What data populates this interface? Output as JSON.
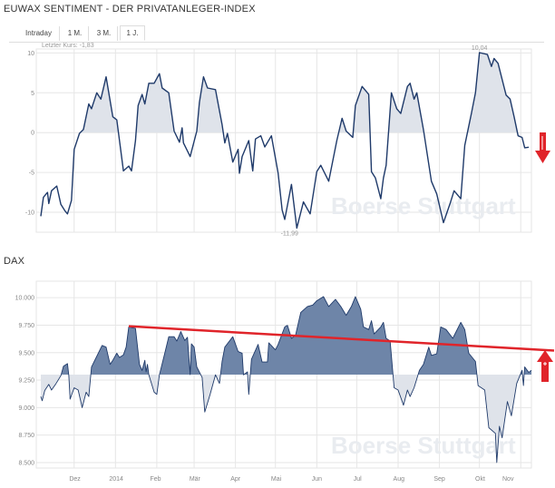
{
  "header": {
    "title": "EUWAX SENTIMENT - DER PRIVATANLEGER-INDEX"
  },
  "tabs": [
    {
      "label": "Intraday",
      "active": false
    },
    {
      "label": "1 M.",
      "active": false
    },
    {
      "label": "3 M.",
      "active": false
    },
    {
      "label": "1 J.",
      "active": true
    }
  ],
  "last_price_label": "Letzter Kurs: -1,83",
  "watermark": "Boerse Stuttgart",
  "colors": {
    "line": "#1f3a6a",
    "fill_light": "#dfe3ea",
    "fill_dark": "#6e85a8",
    "annotation": "#e0242a",
    "grid": "#e6e6e6"
  },
  "chart_data": [
    {
      "type": "area",
      "title": "",
      "xlim": [
        "2013-11-06",
        "2014-11-09"
      ],
      "ylim": [
        -12.5,
        10.5
      ],
      "baseline": 0,
      "yticks": [
        10,
        5,
        0,
        -5,
        -10
      ],
      "ytick_labels": [
        "10",
        "5",
        "0",
        "-5",
        "-10"
      ],
      "grid": true,
      "max_label": "10,04",
      "min_label": "-11,99",
      "annotation": {
        "type": "arrow",
        "direction": "down"
      },
      "x": [
        "2013-11-06",
        "2013-11-08",
        "2013-11-11",
        "2013-11-12",
        "2013-11-14",
        "2013-11-18",
        "2013-11-21",
        "2013-11-24",
        "2013-11-26",
        "2013-11-29",
        "2013-12-01",
        "2013-12-05",
        "2013-12-08",
        "2013-12-12",
        "2013-12-14",
        "2013-12-18",
        "2013-12-21",
        "2013-12-25",
        "2013-12-30",
        "2014-01-02",
        "2014-01-07",
        "2014-01-11",
        "2014-01-13",
        "2014-01-16",
        "2014-01-18",
        "2014-01-21",
        "2014-01-23",
        "2014-01-26",
        "2014-01-30",
        "2014-02-03",
        "2014-02-05",
        "2014-02-10",
        "2014-02-14",
        "2014-02-18",
        "2014-02-20",
        "2014-02-21",
        "2014-02-26",
        "2014-03-03",
        "2014-03-05",
        "2014-03-08",
        "2014-03-11",
        "2014-03-17",
        "2014-03-22",
        "2014-03-24",
        "2014-03-26",
        "2014-03-30",
        "2014-04-03",
        "2014-04-04",
        "2014-04-06",
        "2014-04-11",
        "2014-04-14",
        "2014-04-16",
        "2014-04-20",
        "2014-04-23",
        "2014-04-28",
        "2014-05-03",
        "2014-05-06",
        "2014-05-08",
        "2014-05-13",
        "2014-05-17",
        "2014-05-22",
        "2014-05-27",
        "2014-06-01",
        "2014-06-04",
        "2014-06-10",
        "2014-06-16",
        "2014-06-20",
        "2014-06-23",
        "2014-06-28",
        "2014-06-30",
        "2014-07-05",
        "2014-07-10",
        "2014-07-12",
        "2014-07-15",
        "2014-07-19",
        "2014-07-21",
        "2014-07-23",
        "2014-07-27",
        "2014-07-31",
        "2014-08-03",
        "2014-08-08",
        "2014-08-10",
        "2014-08-13",
        "2014-08-15",
        "2014-08-20",
        "2014-08-26",
        "2014-08-30",
        "2014-09-04",
        "2014-09-09",
        "2014-09-12",
        "2014-09-17",
        "2014-09-20",
        "2014-09-25",
        "2014-09-28",
        "2014-10-01",
        "2014-10-07",
        "2014-10-10",
        "2014-10-12",
        "2014-10-15",
        "2014-10-21",
        "2014-10-24",
        "2014-10-27",
        "2014-10-30",
        "2014-11-02",
        "2014-11-04",
        "2014-11-07"
      ],
      "values": [
        -10.5,
        -8.1,
        -7.5,
        -8.9,
        -7.3,
        -6.7,
        -9.0,
        -9.8,
        -10.2,
        -8.5,
        -2.1,
        -0.1,
        0.4,
        3.6,
        3.0,
        5.0,
        4.2,
        7.0,
        2.0,
        1.6,
        -4.8,
        -4.2,
        -4.8,
        -1.0,
        3.4,
        4.8,
        3.6,
        6.2,
        6.2,
        7.4,
        5.6,
        5.0,
        0.2,
        -1.2,
        0.6,
        -1.3,
        -3.0,
        0.2,
        3.8,
        7.0,
        5.6,
        5.4,
        1.0,
        -1.3,
        -0.1,
        -3.7,
        -2.1,
        -5.1,
        -3.0,
        -1.0,
        -4.8,
        -0.8,
        -0.4,
        -1.8,
        -0.4,
        -5.1,
        -9.7,
        -10.9,
        -6.5,
        -11.99,
        -8.7,
        -10.2,
        -4.9,
        -4.1,
        -6.1,
        -1.0,
        1.8,
        0.2,
        -0.6,
        3.4,
        5.8,
        4.8,
        -4.9,
        -5.7,
        -8.3,
        -5.7,
        -4.1,
        5.0,
        3.0,
        2.4,
        5.8,
        6.2,
        4.2,
        5.0,
        0.4,
        -6.1,
        -7.7,
        -11.3,
        -8.9,
        -7.3,
        -8.3,
        -1.6,
        2.4,
        5.0,
        10.04,
        9.8,
        8.3,
        9.3,
        8.7,
        4.7,
        4.2,
        2.0,
        -0.4,
        -0.6,
        -1.9,
        -1.83
      ]
    },
    {
      "type": "area",
      "title": "DAX",
      "xlim": [
        "2013-11-06",
        "2014-11-09"
      ],
      "ylim": [
        8450,
        10150
      ],
      "baseline": 9300,
      "yticks": [
        10000,
        9750,
        9500,
        9250,
        9000,
        8750,
        8500
      ],
      "ytick_labels": [
        "10.000",
        "9.750",
        "9.500",
        "9.250",
        "9.000",
        "8.750",
        "8.500"
      ],
      "xticks": [
        "2013-12-01",
        "2014-01-01",
        "2014-02-01",
        "2014-03-01",
        "2014-04-01",
        "2014-05-01",
        "2014-06-01",
        "2014-07-01",
        "2014-08-01",
        "2014-09-01",
        "2014-10-01",
        "2014-11-01"
      ],
      "xtick_labels": [
        "Dez",
        "2014",
        "Feb",
        "Mär",
        "Apr",
        "Mai",
        "Jun",
        "Jul",
        "Aug",
        "Sep",
        "Okt",
        "Nov"
      ],
      "grid": true,
      "trendline": {
        "from": [
          "2014-01-11",
          9740
        ],
        "to": [
          "2014-11-26",
          9519
        ]
      },
      "annotation": {
        "type": "arrow",
        "direction": "up"
      },
      "x": [
        "2013-11-06",
        "2013-11-07",
        "2013-11-09",
        "2013-11-12",
        "2013-11-14",
        "2013-11-17",
        "2013-11-21",
        "2013-11-23",
        "2013-11-26",
        "2013-11-27",
        "2013-11-28",
        "2013-12-01",
        "2013-12-04",
        "2013-12-07",
        "2013-12-10",
        "2013-12-12",
        "2013-12-14",
        "2013-12-22",
        "2013-12-25",
        "2013-12-28",
        "2013-12-30",
        "2014-01-02",
        "2014-01-04",
        "2014-01-07",
        "2014-01-09",
        "2014-01-11",
        "2014-01-16",
        "2014-01-19",
        "2014-01-21",
        "2014-01-23",
        "2014-01-24",
        "2014-01-25",
        "2014-01-26",
        "2014-01-30",
        "2014-02-01",
        "2014-02-03",
        "2014-02-07",
        "2014-02-10",
        "2014-02-14",
        "2014-02-16",
        "2014-02-19",
        "2014-02-22",
        "2014-02-24",
        "2014-02-26",
        "2014-02-27",
        "2014-03-01",
        "2014-03-03",
        "2014-03-07",
        "2014-03-09",
        "2014-03-13",
        "2014-03-17",
        "2014-03-20",
        "2014-03-22",
        "2014-03-24",
        "2014-03-30",
        "2014-04-03",
        "2014-04-06",
        "2014-04-07",
        "2014-04-10",
        "2014-04-11",
        "2014-04-13",
        "2014-04-18",
        "2014-04-21",
        "2014-04-25",
        "2014-04-26",
        "2014-05-01",
        "2014-05-03",
        "2014-05-08",
        "2014-05-10",
        "2014-05-13",
        "2014-05-16",
        "2014-05-20",
        "2014-05-25",
        "2014-05-29",
        "2014-06-01",
        "2014-06-06",
        "2014-06-10",
        "2014-06-15",
        "2014-06-19",
        "2014-06-23",
        "2014-06-27",
        "2014-06-30",
        "2014-07-04",
        "2014-07-06",
        "2014-07-10",
        "2014-07-12",
        "2014-07-14",
        "2014-07-19",
        "2014-07-21",
        "2014-07-23",
        "2014-07-26",
        "2014-07-29",
        "2014-08-01",
        "2014-08-05",
        "2014-08-08",
        "2014-08-10",
        "2014-08-13",
        "2014-08-17",
        "2014-08-20",
        "2014-08-24",
        "2014-08-26",
        "2014-08-30",
        "2014-09-02",
        "2014-09-06",
        "2014-09-11",
        "2014-09-17",
        "2014-09-20",
        "2014-09-23",
        "2014-09-28",
        "2014-09-30",
        "2014-10-05",
        "2014-10-08",
        "2014-10-13",
        "2014-10-14",
        "2014-10-16",
        "2014-10-18",
        "2014-10-22",
        "2014-10-25",
        "2014-10-29",
        "2014-11-02",
        "2014-11-03",
        "2014-11-04",
        "2014-11-07",
        "2014-11-09"
      ],
      "values": [
        9101,
        9062,
        9156,
        9211,
        9160,
        9211,
        9290,
        9377,
        9400,
        9290,
        9077,
        9180,
        9160,
        9000,
        9140,
        9100,
        9369,
        9566,
        9550,
        9393,
        9430,
        9495,
        9456,
        9480,
        9550,
        9734,
        9720,
        9393,
        9338,
        9430,
        9325,
        9393,
        9298,
        9140,
        9120,
        9298,
        9495,
        9645,
        9645,
        9605,
        9692,
        9610,
        9640,
        9300,
        9580,
        9550,
        9370,
        9274,
        8960,
        9120,
        9298,
        9220,
        9420,
        9550,
        9645,
        9510,
        9495,
        9298,
        9325,
        9120,
        9440,
        9575,
        9415,
        9415,
        9590,
        9525,
        9575,
        9734,
        9748,
        9630,
        9655,
        9866,
        9920,
        9933,
        9972,
        10010,
        9920,
        9985,
        9920,
        9840,
        9920,
        10010,
        9895,
        9734,
        9710,
        9790,
        9670,
        9734,
        9775,
        9630,
        9605,
        9180,
        9160,
        9022,
        9160,
        9100,
        9180,
        9340,
        9393,
        9550,
        9475,
        9490,
        9734,
        9710,
        9630,
        9775,
        9710,
        9495,
        9420,
        9200,
        9160,
        8817,
        8765,
        8500,
        8830,
        8725,
        9055,
        8925,
        9220,
        9340,
        9200,
        9370,
        9320,
        9340
      ]
    }
  ]
}
